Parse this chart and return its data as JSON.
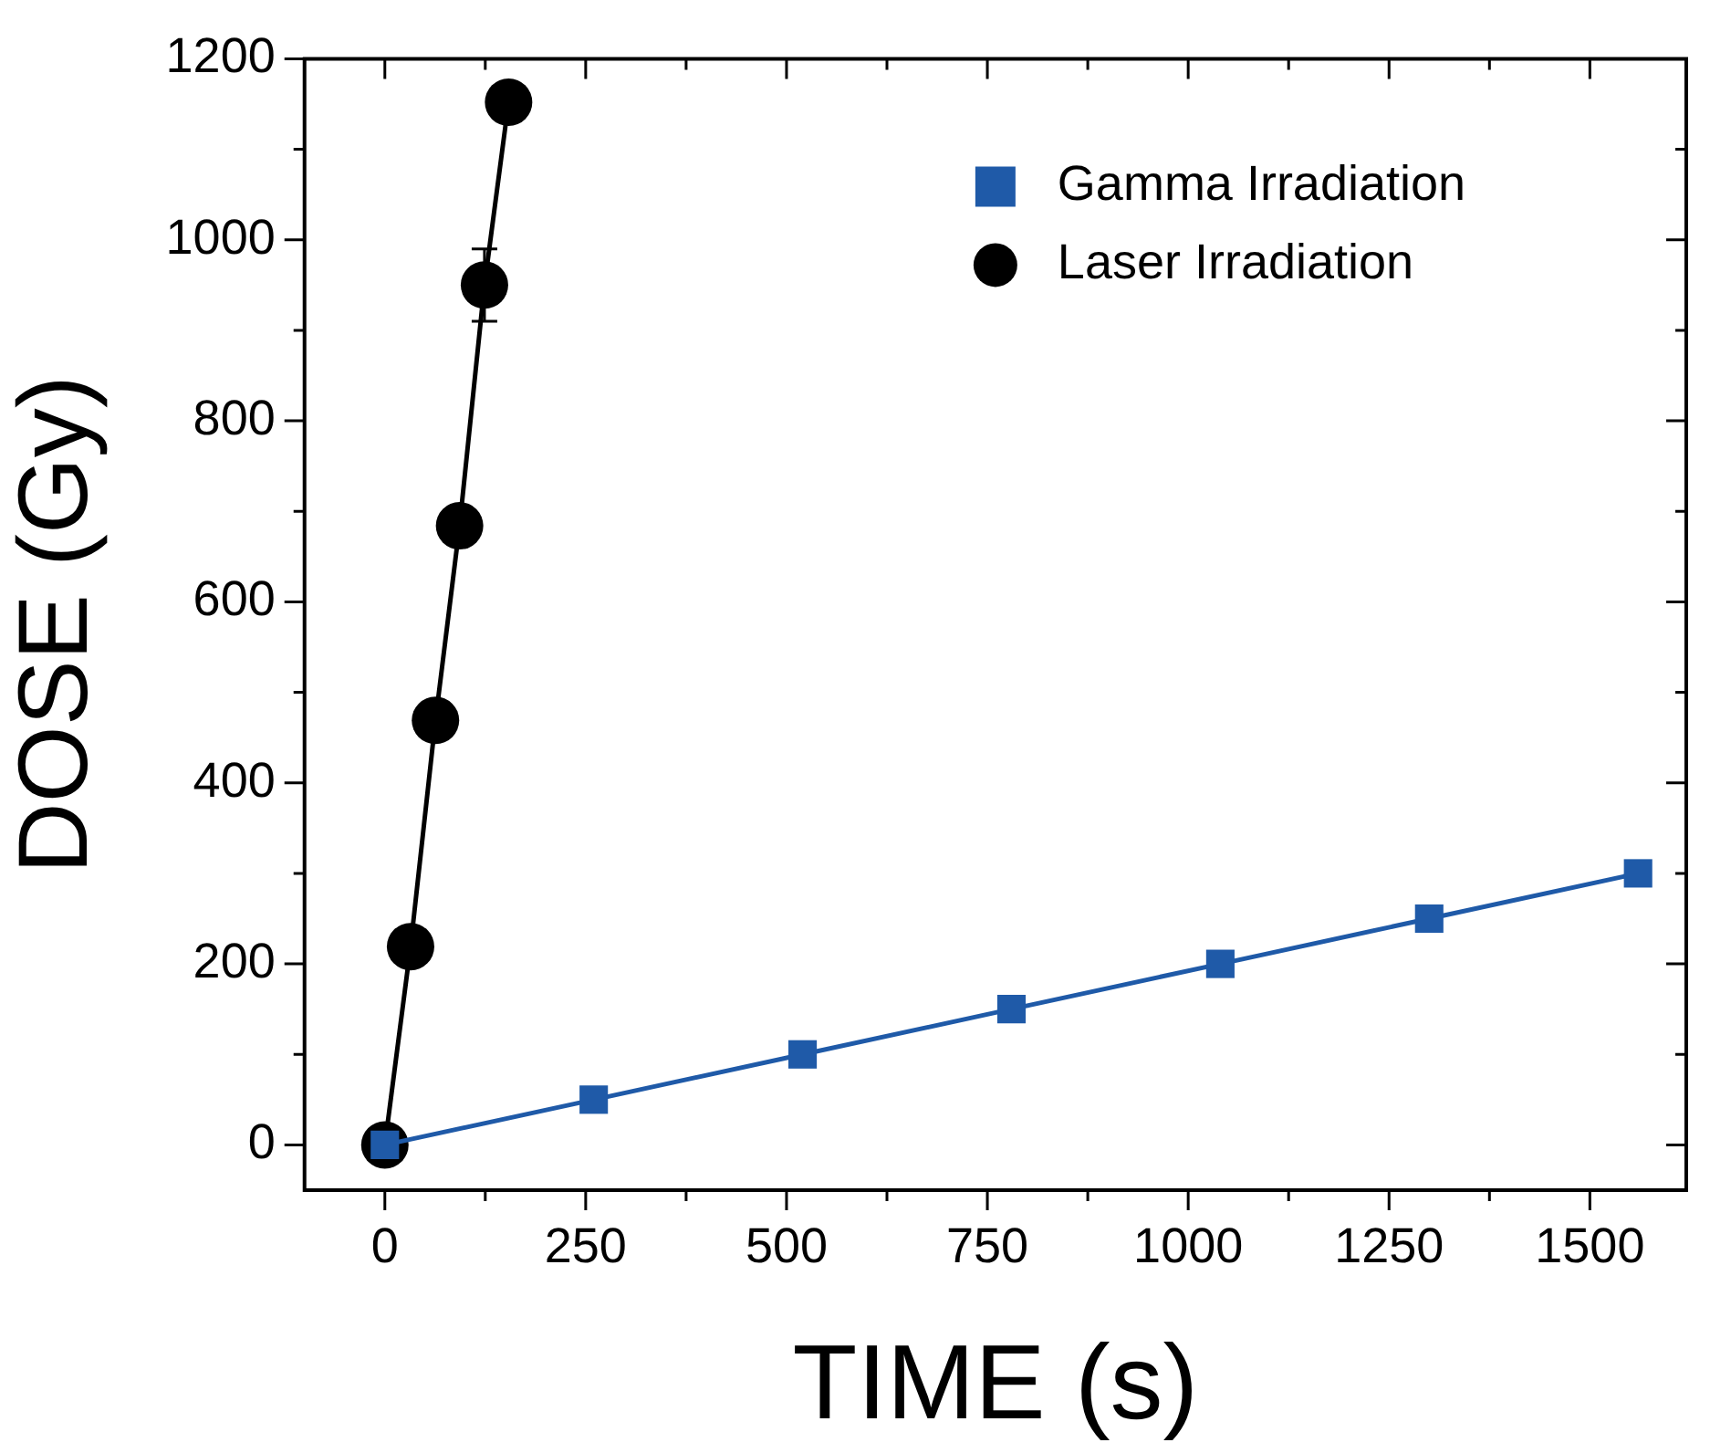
{
  "chart_data": {
    "type": "line",
    "xlabel": "TIME (s)",
    "ylabel": "DOSE (Gy)",
    "xlim": [
      -100,
      1620
    ],
    "xticks": [
      0,
      {
        "value": 125,
        "label": null
      },
      250,
      {
        "value": 375,
        "label": null
      },
      500,
      {
        "value": 625,
        "label": null
      },
      750,
      {
        "value": 875,
        "label": null
      },
      1000,
      {
        "value": 1125,
        "label": null
      },
      1250,
      {
        "value": 1375,
        "label": null
      },
      1500
    ],
    "ylim": [
      -50,
      1200
    ],
    "yticks": [
      0,
      {
        "value": 100,
        "label": null
      },
      200,
      {
        "value": 300,
        "label": null
      },
      400,
      {
        "value": 500,
        "label": null
      },
      600,
      {
        "value": 700,
        "label": null
      },
      800,
      {
        "value": 900,
        "label": null
      },
      1000,
      {
        "value": 1100,
        "label": null
      },
      1200
    ],
    "grid": false,
    "legend": "top right",
    "series": [
      {
        "name": "Gamma Irradiation",
        "color": "#1f5aa8",
        "marker": "square",
        "x": [
          0,
          260,
          520,
          780,
          1040,
          1300,
          1560
        ],
        "values": [
          0,
          50,
          100,
          150,
          200,
          250,
          300
        ]
      },
      {
        "name": "Laser Irradiation",
        "color": "#000000",
        "marker": "circle",
        "x": [
          0,
          32,
          63,
          93,
          124,
          154
        ],
        "values": [
          0,
          219,
          469,
          684,
          950,
          1152
        ],
        "errors": [
          null,
          null,
          null,
          null,
          40,
          null
        ]
      }
    ]
  }
}
